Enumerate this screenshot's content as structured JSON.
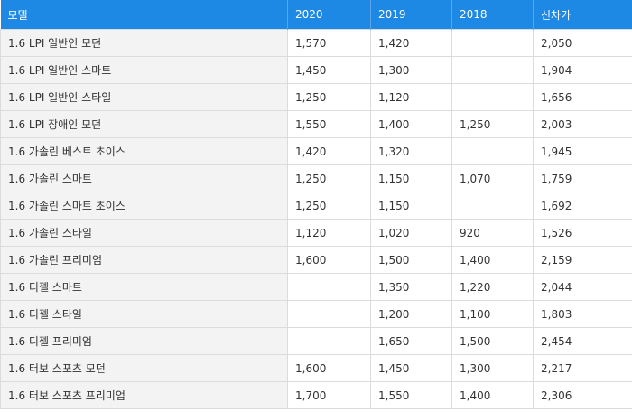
{
  "table": {
    "header": [
      "모델",
      "2020",
      "2019",
      "2018",
      "신차가"
    ],
    "rows": [
      [
        "1.6 LPI 일반인 모던",
        "1,570",
        "1,420",
        null,
        "2,050"
      ],
      [
        "1.6 LPI 일반인 스마트",
        "1,450",
        "1,300",
        null,
        "1,904"
      ],
      [
        "1.6 LPI 일반인 스타일",
        "1,250",
        "1,120",
        null,
        "1,656"
      ],
      [
        "1.6 LPI 장애인 모던",
        "1,550",
        "1,400",
        "1,250",
        "2,003"
      ],
      [
        "1.6 가솔린 베스트 초이스",
        "1,420",
        "1,320",
        null,
        "1,945"
      ],
      [
        "1.6 가솔린 스마트",
        "1,250",
        "1,150",
        "1,070",
        "1,759"
      ],
      [
        "1.6 가솔린 스마트 초이스",
        "1,250",
        "1,150",
        null,
        "1,692"
      ],
      [
        "1.6 가솔린 스타일",
        "1,120",
        "1,020",
        "920",
        "1,526"
      ],
      [
        "1.6 가솔린 프리미엄",
        "1,600",
        "1,500",
        "1,400",
        "2,159"
      ],
      [
        "1.6 디젤 스마트",
        null,
        "1,350",
        "1,220",
        "2,044"
      ],
      [
        "1.6 디젤 스타일",
        null,
        "1,200",
        "1,100",
        "1,803"
      ],
      [
        "1.6 디젤 프리미엄",
        null,
        "1,650",
        "1,500",
        "2,454"
      ],
      [
        "1.6 터보 스포츠 모던",
        "1,600",
        "1,450",
        "1,300",
        "2,217"
      ],
      [
        "1.6 터보 스포츠 프리미엄",
        "1,700",
        "1,550",
        "1,400",
        "2,306"
      ]
    ]
  }
}
